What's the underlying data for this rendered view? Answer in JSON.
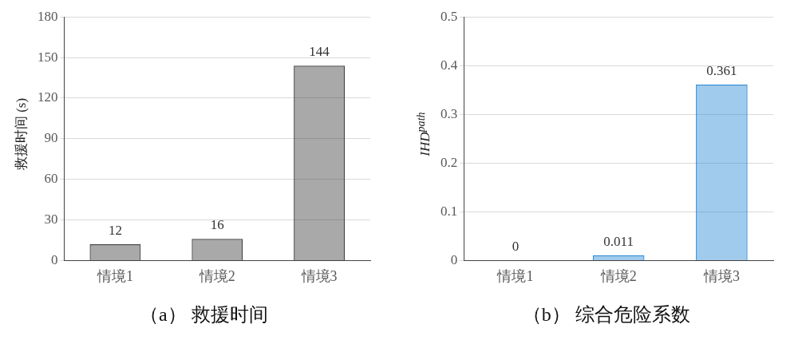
{
  "chart_data": [
    {
      "type": "bar",
      "title": "（a） 救援时间",
      "ylabel": "救援时间 (s)",
      "categories": [
        "情境1",
        "情境2",
        "情境3"
      ],
      "values": [
        12,
        16,
        144
      ],
      "color": "#404040",
      "ylim": [
        0,
        180
      ],
      "yticks": [
        0,
        30,
        60,
        90,
        120,
        150,
        180
      ],
      "grid": "y",
      "data_labels": true
    },
    {
      "type": "bar",
      "title": "（b） 综合危险系数",
      "ylabel": "IHD$^{path}$",
      "categories": [
        "情境1",
        "情境2",
        "情境3"
      ],
      "values": [
        0,
        0.011,
        0.361
      ],
      "color": "#2e8bd6",
      "ylim": [
        0,
        0.5
      ],
      "yticks": [
        0,
        0.1,
        0.2,
        0.3,
        0.4,
        0.5
      ],
      "grid": "y",
      "data_labels": true
    }
  ]
}
